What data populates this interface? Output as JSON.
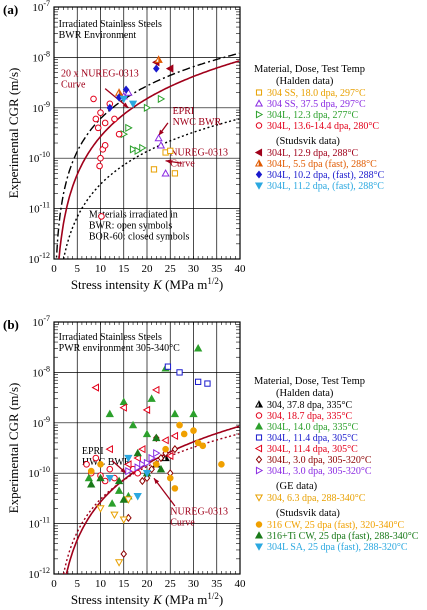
{
  "chart_data": [
    {
      "panel_label": "(a)",
      "type": "scatter",
      "title": "",
      "xlabel": "Stress intensity K (MPa m^1/2)",
      "xlabel_parts": {
        "main": "Stress intensity ",
        "italic": "K",
        "unit": " (MPa m",
        "sup": "1/2",
        "close": ")"
      },
      "ylabel": "Experimental CGR (m/s)",
      "x_range": [
        0,
        40
      ],
      "y_range_log10": [
        -12,
        -7
      ],
      "x_ticks": [
        "0",
        "5",
        "10",
        "15",
        "20",
        "25",
        "30",
        "35",
        "40"
      ],
      "y_ticks": [
        {
          "base": "10",
          "exp": "-12"
        },
        {
          "base": "10",
          "exp": "-11"
        },
        {
          "base": "10",
          "exp": "-10"
        },
        {
          "base": "10",
          "exp": "-9"
        },
        {
          "base": "10",
          "exp": "-8"
        },
        {
          "base": "10",
          "exp": "-7"
        }
      ],
      "scale": "log-y",
      "grid": true,
      "texts": {
        "env_line1": "Irradiated Stainless Steels",
        "env_line2": "BWR Environment",
        "nureg20_line1": "20 x NUREG-0313",
        "nureg20_line2": "Curve",
        "epri_line1": "EPRI",
        "epri_line2": "NWC BWR",
        "nureg_line1": "NUREG-0313",
        "nureg_line2": "Curve",
        "mat_line1": "Materials irradiated in",
        "mat_line2": "BWR: open symbols",
        "mat_line3": "BOR-60: closed symbols"
      },
      "legend": {
        "title": "Material, Dose, Test Temp",
        "groups": [
          {
            "header": "(Halden data)",
            "entries": [
              {
                "label": "304 SS, 18.0 dpa, 297°C",
                "marker": "square-open",
                "color": "#e8a000"
              },
              {
                "label": "304 SS, 37.5 dpa, 297°C",
                "marker": "triangle-up-open",
                "color": "#8a2be2"
              },
              {
                "label": "304L, 12.3 dpa, 277°C",
                "marker": "triangle-right-open",
                "color": "#2ca02c"
              },
              {
                "label": "304L, 13.6-14.4 dpa, 280°C",
                "marker": "circle-open",
                "color": "#e2001a"
              }
            ]
          },
          {
            "header": "(Studsvik data)",
            "entries": [
              {
                "label": "304L, 12.9 dpa, 288°C",
                "marker": "triangle-left",
                "color": "#a0001a"
              },
              {
                "label": "304L, 5.5 dpa (fast), 288°C",
                "marker": "half-triangle",
                "color": "#e05a00"
              },
              {
                "label": "304L, 10.2 dpa, (fast), 288°C",
                "marker": "diamond",
                "color": "#1a1acd"
              },
              {
                "label": "304L, 11.2 dpa, (fast), 288°C",
                "marker": "triangle-down",
                "color": "#2ba8e0"
              }
            ]
          }
        ]
      },
      "curves": [
        {
          "name": "NUREG-0313 Curve",
          "style": "dotted",
          "color": "#000000",
          "A": 2.1e-13,
          "n": 2.161
        },
        {
          "name": "20 x NUREG-0313 Curve",
          "style": "dash-dot",
          "color": "#000000",
          "A": 4.2e-12,
          "n": 2.161
        },
        {
          "name": "EPRI NWC BWR",
          "style": "solid",
          "color": "#a0001a",
          "A": 8.5e-13,
          "n": 2.5
        }
      ],
      "series": [
        {
          "marker": "square-open",
          "color": "#e8a000",
          "points": [
            [
              21.5,
              6e-11
            ],
            [
              24,
              1.3e-10
            ],
            [
              25,
              1.4e-10
            ],
            [
              26,
              5e-11
            ]
          ]
        },
        {
          "marker": "triangle-up-open",
          "color": "#8a2be2",
          "points": [
            [
              15,
              1.7e-09
            ],
            [
              16,
              2e-09
            ],
            [
              22.5,
              2.5e-10
            ],
            [
              23,
              1.8e-10
            ],
            [
              24,
              5e-11
            ]
          ]
        },
        {
          "marker": "triangle-right-open",
          "color": "#2ca02c",
          "points": [
            [
              15,
              3e-10
            ],
            [
              16,
              4e-10
            ],
            [
              17,
              1.5e-10
            ],
            [
              18,
              1.4e-10
            ],
            [
              19,
              1.6e-10
            ],
            [
              20,
              1e-09
            ],
            [
              23,
              1.5e-09
            ]
          ]
        },
        {
          "marker": "circle-open",
          "color": "#e2001a",
          "points": [
            [
              8.5,
              1.5e-09
            ],
            [
              9,
              6e-10
            ],
            [
              9.5,
              4e-10
            ],
            [
              10,
              8e-10
            ],
            [
              10,
              1e-10
            ],
            [
              10.5,
              1.5e-10
            ],
            [
              11,
              1.8e-10
            ],
            [
              11,
              5e-10
            ],
            [
              12,
              1.2e-09
            ],
            [
              9.8,
              7e-11
            ],
            [
              10.2,
              7e-12
            ],
            [
              13,
              6e-10
            ],
            [
              14,
              3e-10
            ]
          ]
        },
        {
          "marker": "triangle-left",
          "color": "#a0001a",
          "points": [
            [
              22,
              8e-09
            ],
            [
              25,
              6e-09
            ]
          ]
        },
        {
          "marker": "half-triangle",
          "color": "#e05a00",
          "points": [
            [
              14,
              2e-09
            ],
            [
              22.5,
              9e-09
            ]
          ]
        },
        {
          "marker": "diamond",
          "color": "#1a1acd",
          "points": [
            [
              12,
              1e-09
            ],
            [
              14,
              1.6e-09
            ],
            [
              15.5,
              2.3e-09
            ],
            [
              22,
              6e-09
            ]
          ]
        },
        {
          "marker": "triangle-down",
          "color": "#2ba8e0",
          "points": [
            [
              15,
              1.5e-09
            ],
            [
              17,
              1.2e-09
            ]
          ]
        }
      ]
    },
    {
      "panel_label": "(b)",
      "type": "scatter",
      "title": "",
      "xlabel": "Stress intensity K (MPa m^1/2)",
      "xlabel_parts": {
        "main": "Stress intensity ",
        "italic": "K",
        "unit": " (MPa m",
        "sup": "1/2",
        "close": ")"
      },
      "ylabel": "Experimental CGR (m/s)",
      "x_range": [
        0,
        40
      ],
      "y_range_log10": [
        -12,
        -7
      ],
      "x_ticks": [
        "0",
        "5",
        "10",
        "15",
        "20",
        "25",
        "30",
        "35",
        "40"
      ],
      "y_ticks": [
        {
          "base": "10",
          "exp": "-12"
        },
        {
          "base": "10",
          "exp": "-11"
        },
        {
          "base": "10",
          "exp": "-10"
        },
        {
          "base": "10",
          "exp": "-9"
        },
        {
          "base": "10",
          "exp": "-8"
        },
        {
          "base": "10",
          "exp": "-7"
        }
      ],
      "scale": "log-y",
      "grid": true,
      "texts": {
        "env_line1": "Irradiated Stainless Steels",
        "env_line2": "PWR environment 305-340°C",
        "epri_line1": "EPRI",
        "epri_line2": "HWC BWR",
        "nureg_line1": "NUREG-0313",
        "nureg_line2": "Curve"
      },
      "legend": {
        "title": "Material, Dose, Test Temp",
        "groups": [
          {
            "header": "(Halden data)",
            "entries": [
              {
                "label": "304, 37.8 dpa, 335°C",
                "marker": "half-triangle-bw",
                "color": "#000000"
              },
              {
                "label": "304, 18.7 dpa, 335°C",
                "marker": "circle-open",
                "color": "#e2001a"
              },
              {
                "label": "304L, 14.0 dpa, 335°C",
                "marker": "triangle-up",
                "color": "#2ca02c"
              },
              {
                "label": "304L, 11.4 dpa, 305°C",
                "marker": "square-open",
                "color": "#1a1acd"
              },
              {
                "label": "304L, 11.4 dpa, 305°C",
                "marker": "triangle-left-open",
                "color": "#e2001a"
              },
              {
                "label": "304L, 3.0 dpa, 305-320°C",
                "marker": "diamond-open",
                "color": "#8b0000"
              },
              {
                "label": "304L, 3.0 dpa, 305-320°C",
                "marker": "triangle-right-open",
                "color": "#8a2be2"
              }
            ]
          },
          {
            "header": "(GE data)",
            "entries": [
              {
                "label": "304, 6.3 dpa, 288-340°C",
                "marker": "triangle-down-open",
                "color": "#e8a000"
              }
            ]
          },
          {
            "header": "(Studsvik data)",
            "entries": [
              {
                "label": "316 CW, 25 dpa (fast), 320-340°C",
                "marker": "circle",
                "color": "#f0a000"
              },
              {
                "label": "316+Ti CW, 25 dpa (fast), 288-340°C",
                "marker": "triangle-up",
                "color": "#1a7a1a"
              },
              {
                "label": "304L SA, 25 dpa (fast), 288-320°C",
                "marker": "triangle-down",
                "color": "#2ba8e0"
              }
            ]
          }
        ]
      },
      "curves": [
        {
          "name": "NUREG-0313 Curve",
          "style": "dotted",
          "color": "#a0001a",
          "A": 2.1e-13,
          "n": 2.161
        },
        {
          "name": "EPRI HWC BWR",
          "style": "solid",
          "color": "#a0001a",
          "A": 8.5e-14,
          "n": 2.5
        }
      ],
      "series": [
        {
          "marker": "half-triangle-bw",
          "color": "#000000",
          "points": [
            [
              22,
              1.5e-10
            ],
            [
              24,
              2e-10
            ]
          ]
        },
        {
          "marker": "circle-open",
          "color": "#e2001a",
          "points": [
            [
              7,
              1.5e-10
            ],
            [
              8,
              1e-10
            ],
            [
              9,
              2e-10
            ],
            [
              10,
              9e-11
            ],
            [
              11,
              7e-11
            ],
            [
              12,
              1.2e-10
            ],
            [
              13,
              8e-11
            ],
            [
              17,
              1.2e-10
            ],
            [
              18,
              1e-10
            ]
          ]
        },
        {
          "marker": "triangle-up",
          "color": "#2ca02c",
          "points": [
            [
              7.5,
              8e-11
            ],
            [
              12,
              1.5e-09
            ],
            [
              14,
              4.5e-11
            ],
            [
              15,
              2.6e-09
            ],
            [
              17,
              9e-10
            ],
            [
              20,
              6e-10
            ],
            [
              21,
              3e-09
            ],
            [
              24,
              1.2e-08
            ],
            [
              26,
              1.5e-09
            ],
            [
              30,
              1.5e-09
            ],
            [
              31,
              3e-08
            ],
            [
              12.5,
              2.5e-11
            ],
            [
              16,
              3.5e-11
            ]
          ]
        },
        {
          "marker": "square-open",
          "color": "#1a1acd",
          "points": [
            [
              24.5,
              1.3e-08
            ],
            [
              27,
              1e-08
            ],
            [
              31,
              6.5e-09
            ],
            [
              33,
              6e-09
            ]
          ]
        },
        {
          "marker": "triangle-left-open",
          "color": "#e2001a",
          "points": [
            [
              9,
              5e-09
            ],
            [
              12,
              3e-10
            ],
            [
              15,
              2e-09
            ],
            [
              16,
              1.5e-10
            ],
            [
              18,
              2e-10
            ],
            [
              19,
              3e-10
            ],
            [
              20,
              1.8e-09
            ],
            [
              22,
              4.5e-09
            ],
            [
              24,
              4.5e-10
            ],
            [
              25,
              2.2e-10
            ],
            [
              26,
              5.5e-10
            ]
          ]
        },
        {
          "marker": "diamond-open",
          "color": "#8b0000",
          "points": [
            [
              15,
              2.5e-12
            ],
            [
              16,
              1.3e-11
            ],
            [
              19,
              7e-11
            ],
            [
              20,
              8e-11
            ],
            [
              21,
              1.2e-10
            ],
            [
              22,
              5e-10
            ],
            [
              23,
              2e-10
            ],
            [
              24,
              2.5e-10
            ],
            [
              25,
              1e-10
            ],
            [
              26,
              3e-10
            ]
          ]
        },
        {
          "marker": "triangle-right-open",
          "color": "#8a2be2",
          "points": [
            [
              16,
              1.1e-10
            ],
            [
              18,
              1.3e-10
            ],
            [
              19,
              1.5e-10
            ],
            [
              20,
              1.6e-10
            ],
            [
              21,
              2e-10
            ],
            [
              22,
              2.5e-10
            ]
          ]
        },
        {
          "marker": "triangle-down-open",
          "color": "#e8a000",
          "points": [
            [
              10,
              2e-11
            ],
            [
              13,
              1.5e-11
            ],
            [
              14,
              1.7e-12
            ],
            [
              16,
              3e-11
            ],
            [
              15,
              1.2e-11
            ]
          ]
        },
        {
          "marker": "circle",
          "color": "#f0a000",
          "points": [
            [
              8,
              1.1e-10
            ],
            [
              10,
              1.5e-10
            ],
            [
              22,
              1.5e-10
            ],
            [
              24,
              3e-10
            ],
            [
              25,
              8e-11
            ],
            [
              26,
              5e-11
            ],
            [
              27,
              9e-10
            ],
            [
              28,
              6e-10
            ],
            [
              30,
              7e-10
            ],
            [
              31,
              4e-10
            ],
            [
              32,
              3.5e-10
            ],
            [
              36,
              1.5e-10
            ]
          ]
        },
        {
          "marker": "triangle-up",
          "color": "#1a7a1a",
          "points": [
            [
              8,
              6e-11
            ],
            [
              10,
              8e-11
            ],
            [
              14,
              7e-11
            ],
            [
              15,
              3e-11
            ],
            [
              18,
              2.5e-10
            ],
            [
              20,
              1e-10
            ],
            [
              22,
              5e-10
            ],
            [
              23,
              1.2e-10
            ]
          ]
        },
        {
          "marker": "triangle-down",
          "color": "#2ba8e0",
          "points": [
            [
              12,
              8e-11
            ],
            [
              16,
              2e-10
            ],
            [
              18,
              3.5e-11
            ],
            [
              20,
              1e-10
            ]
          ]
        }
      ]
    }
  ]
}
